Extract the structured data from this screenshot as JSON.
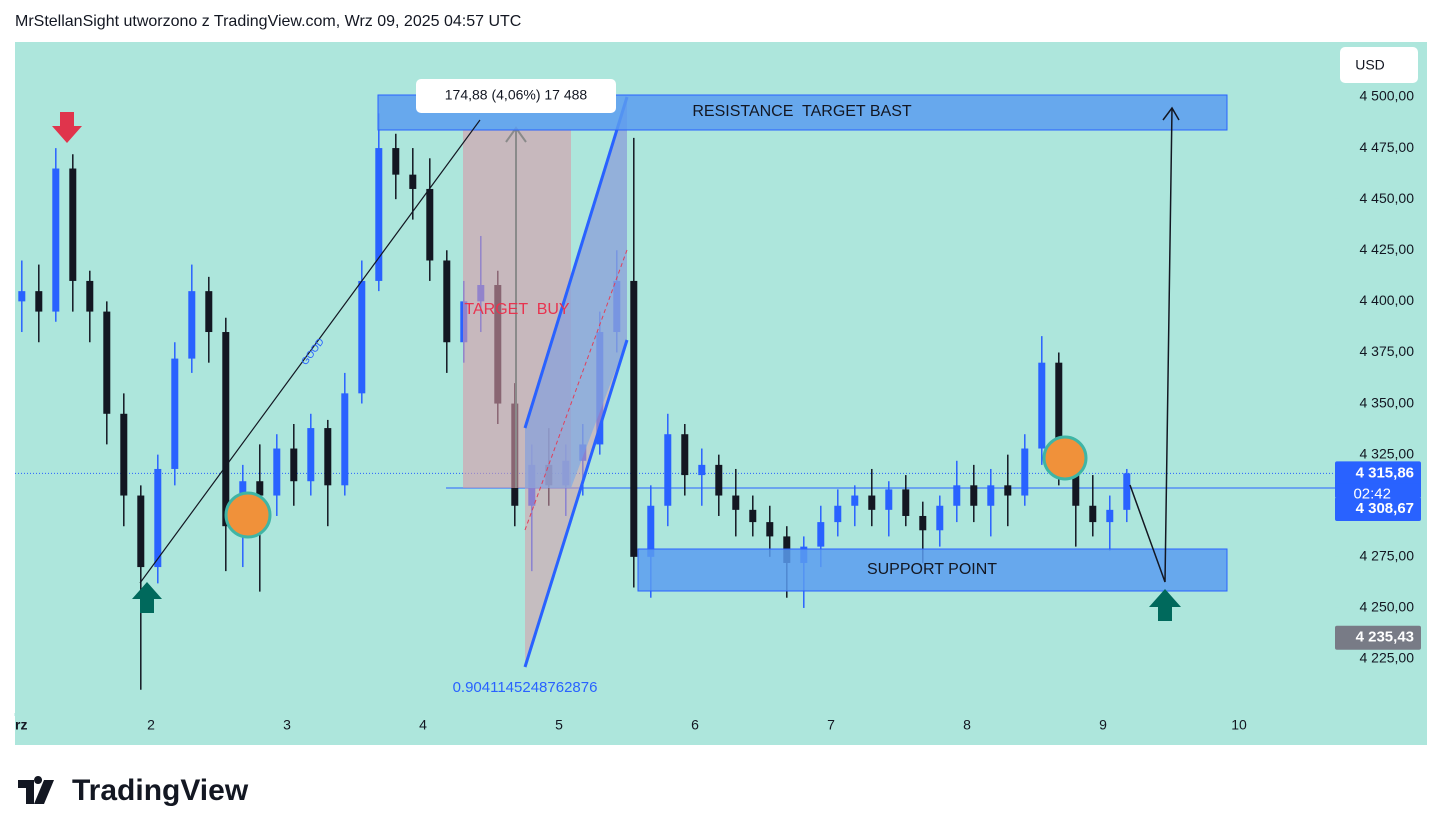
{
  "header": {
    "title": "MrStellanSight utworzono z TradingView.com, Wrz 09, 2025 04:57 UTC"
  },
  "logo": "TradingView",
  "chart_data": {
    "type": "candlestick",
    "currency": "USD",
    "up_color": "#2962ff",
    "down_color": "#131722",
    "xlim": [
      1,
      10.706
    ],
    "xticks": [
      {
        "value": 1,
        "label": "rz"
      },
      2,
      3,
      4,
      5,
      6,
      7,
      8,
      9,
      10
    ],
    "ylim": [
      4198.6,
      4526.9
    ],
    "yticks": [
      {
        "value": 4225,
        "label": "4 225,00"
      },
      {
        "value": 4250,
        "label": "4 250,00"
      },
      {
        "value": 4275,
        "label": "4 275,00"
      },
      {
        "value": 4300,
        "label": "4 300,00"
      },
      {
        "value": 4325,
        "label": "4 325,00"
      },
      {
        "value": 4350,
        "label": "4 350,00"
      },
      {
        "value": 4375,
        "label": "4 375,00"
      },
      {
        "value": 4400,
        "label": "4 400,00"
      },
      {
        "value": 4425,
        "label": "4 425,00"
      },
      {
        "value": 4450,
        "label": "4 450,00"
      },
      {
        "value": 4475,
        "label": "4 475,00"
      },
      {
        "value": 4500,
        "label": "4 500,00"
      }
    ],
    "x": [
      1.05,
      1.175,
      1.3,
      1.425,
      1.55,
      1.675,
      1.8,
      1.925,
      2.05,
      2.175,
      2.3,
      2.425,
      2.55,
      2.675,
      2.8,
      2.925,
      3.05,
      3.175,
      3.3,
      3.425,
      3.55,
      3.675,
      3.8,
      3.925,
      4.05,
      4.175,
      4.3,
      4.425,
      4.55,
      4.675,
      4.8,
      4.925,
      5.05,
      5.175,
      5.3,
      5.425,
      5.55,
      5.675,
      5.8,
      5.925,
      6.05,
      6.175,
      6.3,
      6.425,
      6.55,
      6.675,
      6.8,
      6.925,
      7.05,
      7.175,
      7.3,
      7.425,
      7.55,
      7.675,
      7.8,
      7.925,
      8.05,
      8.175,
      8.3,
      8.425,
      8.55,
      8.675,
      8.8,
      8.925,
      9.05,
      9.175
    ],
    "open": [
      4400,
      4405,
      4395,
      4465,
      4410,
      4395,
      4345,
      4305,
      4270,
      4318,
      4372,
      4405,
      4385,
      4290,
      4312,
      4305,
      4328,
      4312,
      4338,
      4310,
      4355,
      4410,
      4475,
      4462,
      4455,
      4420,
      4380,
      4400,
      4408,
      4350,
      4300,
      4320,
      4310,
      4322,
      4330,
      4385,
      4410,
      4275,
      4300,
      4335,
      4315,
      4320,
      4305,
      4298,
      4292,
      4285,
      4272,
      4280,
      4292,
      4300,
      4305,
      4298,
      4308,
      4295,
      4288,
      4300,
      4310,
      4300,
      4310,
      4305,
      4328,
      4370,
      4318,
      4300,
      4292,
      4298
    ],
    "high": [
      4420,
      4418,
      4475,
      4472,
      4415,
      4400,
      4355,
      4310,
      4325,
      4380,
      4418,
      4412,
      4392,
      4320,
      4330,
      4335,
      4340,
      4345,
      4342,
      4365,
      4420,
      4492,
      4482,
      4475,
      4470,
      4425,
      4410,
      4432,
      4415,
      4360,
      4330,
      4338,
      4330,
      4340,
      4395,
      4425,
      4480,
      4310,
      4345,
      4340,
      4328,
      4325,
      4318,
      4305,
      4300,
      4290,
      4285,
      4300,
      4308,
      4310,
      4318,
      4312,
      4315,
      4302,
      4305,
      4322,
      4320,
      4318,
      4325,
      4335,
      4383,
      4375,
      4328,
      4315,
      4305,
      4318
    ],
    "low": [
      4385,
      4380,
      4390,
      4395,
      4380,
      4330,
      4290,
      4210,
      4262,
      4310,
      4365,
      4370,
      4268,
      4270,
      4258,
      4295,
      4300,
      4305,
      4290,
      4305,
      4350,
      4405,
      4450,
      4440,
      4410,
      4365,
      4370,
      4385,
      4340,
      4290,
      4268,
      4300,
      4295,
      4305,
      4325,
      4375,
      4260,
      4255,
      4290,
      4305,
      4300,
      4295,
      4285,
      4285,
      4275,
      4255,
      4250,
      4270,
      4285,
      4290,
      4290,
      4285,
      4290,
      4272,
      4280,
      4292,
      4292,
      4285,
      4290,
      4300,
      4320,
      4310,
      4280,
      4285,
      4278,
      4292
    ],
    "close": [
      4405,
      4395,
      4465,
      4410,
      4395,
      4345,
      4305,
      4270,
      4318,
      4372,
      4405,
      4385,
      4290,
      4312,
      4305,
      4328,
      4312,
      4338,
      4310,
      4355,
      4410,
      4475,
      4462,
      4455,
      4420,
      4380,
      4400,
      4408,
      4350,
      4300,
      4320,
      4310,
      4322,
      4330,
      4385,
      4410,
      4275,
      4300,
      4335,
      4315,
      4320,
      4305,
      4298,
      4292,
      4285,
      4272,
      4280,
      4292,
      4300,
      4305,
      4298,
      4308,
      4295,
      4288,
      4300,
      4310,
      4300,
      4310,
      4305,
      4328,
      4370,
      4318,
      4300,
      4292,
      4298,
      4315.86
    ],
    "price_labels": [
      {
        "value": 4315.86,
        "label": "4 315,86",
        "sub": "02:42",
        "color": "#2962ff"
      },
      {
        "value": 4308.67,
        "label": "4 308,67",
        "color": "#2962ff"
      },
      {
        "value": 4235.43,
        "label": "4 235,43",
        "color": "#787b86"
      }
    ],
    "annotations": {
      "resistance": "RESISTANCE  TARGET BAST",
      "support": "SUPPORT POINT",
      "target": "TARGET  BUY",
      "line": "GOOD",
      "measure": "174,88 (4,06%) 17 488",
      "ratio": "0.9041145248762876"
    }
  }
}
